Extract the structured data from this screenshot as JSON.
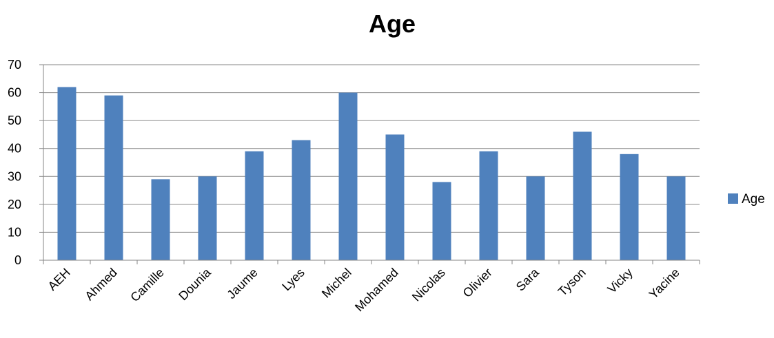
{
  "chart_data": {
    "type": "bar",
    "title": "Age",
    "xlabel": "",
    "ylabel": "",
    "categories": [
      "AEH",
      "Ahmed",
      "Camille",
      "Dounia",
      "Jaume",
      "Lyes",
      "Michel",
      "Mohamed",
      "Nicolas",
      "Olivier",
      "Sara",
      "Tyson",
      "Vicky",
      "Yacine"
    ],
    "series": [
      {
        "name": "Age",
        "color": "#4F81BD",
        "values": [
          62,
          59,
          29,
          30,
          39,
          43,
          60,
          45,
          28,
          39,
          30,
          46,
          38,
          30
        ]
      }
    ],
    "ylim": [
      0,
      70
    ],
    "yticks": [
      0,
      10,
      20,
      30,
      40,
      50,
      60,
      70
    ],
    "grid": true,
    "legend_position": "right"
  }
}
